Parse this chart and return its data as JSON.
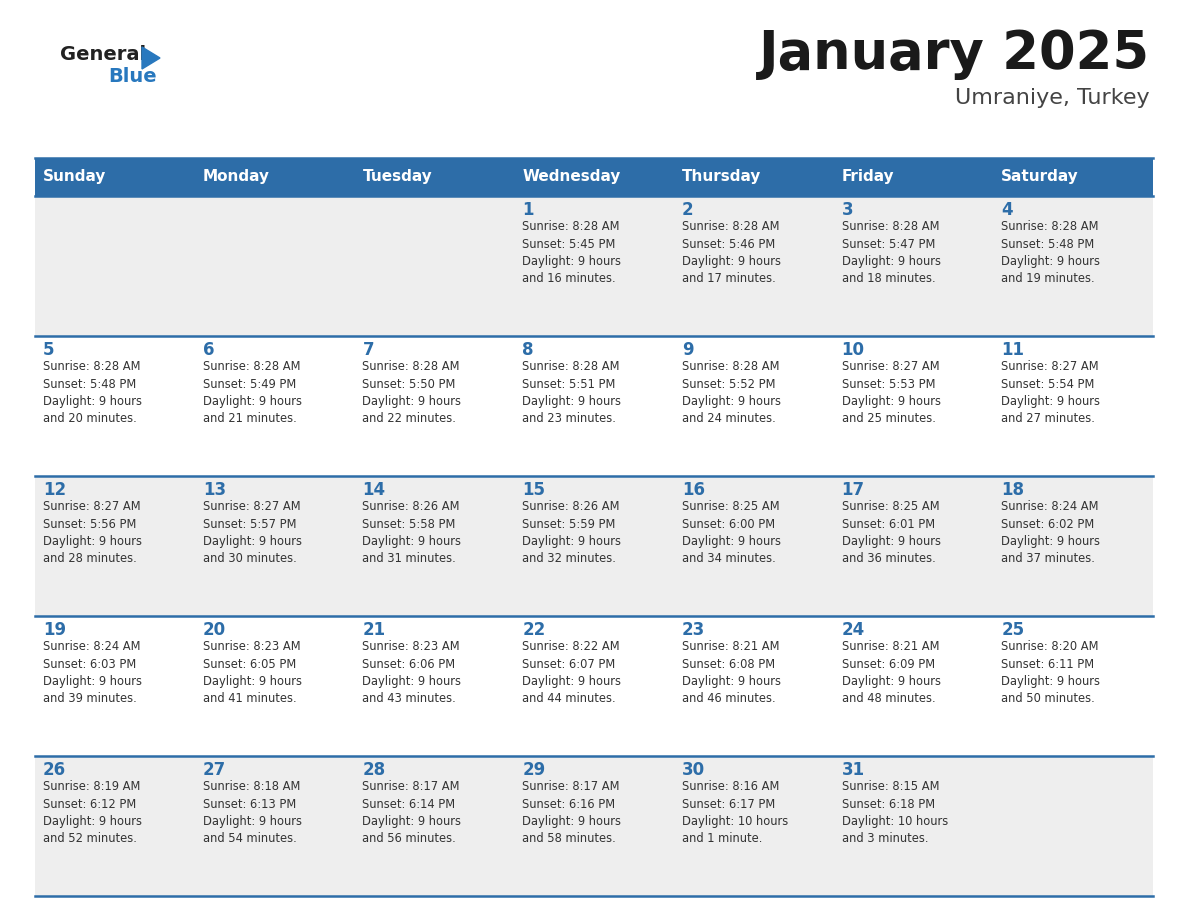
{
  "title": "January 2025",
  "subtitle": "Umraniye, Turkey",
  "days_of_week": [
    "Sunday",
    "Monday",
    "Tuesday",
    "Wednesday",
    "Thursday",
    "Friday",
    "Saturday"
  ],
  "header_bg": "#2D6DA8",
  "header_text": "#FFFFFF",
  "day_num_color": "#2D6DA8",
  "cell_bg_odd": "#EEEEEE",
  "cell_bg_even": "#FFFFFF",
  "text_color": "#333333",
  "grid_line_color": "#2D6DA8",
  "logo_general_color": "#222222",
  "logo_blue_color": "#2878BE",
  "logo_tri_color": "#2878BE",
  "weeks": [
    [
      {
        "day": null,
        "sunrise": null,
        "sunset": null,
        "daylight": null
      },
      {
        "day": null,
        "sunrise": null,
        "sunset": null,
        "daylight": null
      },
      {
        "day": null,
        "sunrise": null,
        "sunset": null,
        "daylight": null
      },
      {
        "day": 1,
        "sunrise": "8:28 AM",
        "sunset": "5:45 PM",
        "daylight": "9 hours\nand 16 minutes."
      },
      {
        "day": 2,
        "sunrise": "8:28 AM",
        "sunset": "5:46 PM",
        "daylight": "9 hours\nand 17 minutes."
      },
      {
        "day": 3,
        "sunrise": "8:28 AM",
        "sunset": "5:47 PM",
        "daylight": "9 hours\nand 18 minutes."
      },
      {
        "day": 4,
        "sunrise": "8:28 AM",
        "sunset": "5:48 PM",
        "daylight": "9 hours\nand 19 minutes."
      }
    ],
    [
      {
        "day": 5,
        "sunrise": "8:28 AM",
        "sunset": "5:48 PM",
        "daylight": "9 hours\nand 20 minutes."
      },
      {
        "day": 6,
        "sunrise": "8:28 AM",
        "sunset": "5:49 PM",
        "daylight": "9 hours\nand 21 minutes."
      },
      {
        "day": 7,
        "sunrise": "8:28 AM",
        "sunset": "5:50 PM",
        "daylight": "9 hours\nand 22 minutes."
      },
      {
        "day": 8,
        "sunrise": "8:28 AM",
        "sunset": "5:51 PM",
        "daylight": "9 hours\nand 23 minutes."
      },
      {
        "day": 9,
        "sunrise": "8:28 AM",
        "sunset": "5:52 PM",
        "daylight": "9 hours\nand 24 minutes."
      },
      {
        "day": 10,
        "sunrise": "8:27 AM",
        "sunset": "5:53 PM",
        "daylight": "9 hours\nand 25 minutes."
      },
      {
        "day": 11,
        "sunrise": "8:27 AM",
        "sunset": "5:54 PM",
        "daylight": "9 hours\nand 27 minutes."
      }
    ],
    [
      {
        "day": 12,
        "sunrise": "8:27 AM",
        "sunset": "5:56 PM",
        "daylight": "9 hours\nand 28 minutes."
      },
      {
        "day": 13,
        "sunrise": "8:27 AM",
        "sunset": "5:57 PM",
        "daylight": "9 hours\nand 30 minutes."
      },
      {
        "day": 14,
        "sunrise": "8:26 AM",
        "sunset": "5:58 PM",
        "daylight": "9 hours\nand 31 minutes."
      },
      {
        "day": 15,
        "sunrise": "8:26 AM",
        "sunset": "5:59 PM",
        "daylight": "9 hours\nand 32 minutes."
      },
      {
        "day": 16,
        "sunrise": "8:25 AM",
        "sunset": "6:00 PM",
        "daylight": "9 hours\nand 34 minutes."
      },
      {
        "day": 17,
        "sunrise": "8:25 AM",
        "sunset": "6:01 PM",
        "daylight": "9 hours\nand 36 minutes."
      },
      {
        "day": 18,
        "sunrise": "8:24 AM",
        "sunset": "6:02 PM",
        "daylight": "9 hours\nand 37 minutes."
      }
    ],
    [
      {
        "day": 19,
        "sunrise": "8:24 AM",
        "sunset": "6:03 PM",
        "daylight": "9 hours\nand 39 minutes."
      },
      {
        "day": 20,
        "sunrise": "8:23 AM",
        "sunset": "6:05 PM",
        "daylight": "9 hours\nand 41 minutes."
      },
      {
        "day": 21,
        "sunrise": "8:23 AM",
        "sunset": "6:06 PM",
        "daylight": "9 hours\nand 43 minutes."
      },
      {
        "day": 22,
        "sunrise": "8:22 AM",
        "sunset": "6:07 PM",
        "daylight": "9 hours\nand 44 minutes."
      },
      {
        "day": 23,
        "sunrise": "8:21 AM",
        "sunset": "6:08 PM",
        "daylight": "9 hours\nand 46 minutes."
      },
      {
        "day": 24,
        "sunrise": "8:21 AM",
        "sunset": "6:09 PM",
        "daylight": "9 hours\nand 48 minutes."
      },
      {
        "day": 25,
        "sunrise": "8:20 AM",
        "sunset": "6:11 PM",
        "daylight": "9 hours\nand 50 minutes."
      }
    ],
    [
      {
        "day": 26,
        "sunrise": "8:19 AM",
        "sunset": "6:12 PM",
        "daylight": "9 hours\nand 52 minutes."
      },
      {
        "day": 27,
        "sunrise": "8:18 AM",
        "sunset": "6:13 PM",
        "daylight": "9 hours\nand 54 minutes."
      },
      {
        "day": 28,
        "sunrise": "8:17 AM",
        "sunset": "6:14 PM",
        "daylight": "9 hours\nand 56 minutes."
      },
      {
        "day": 29,
        "sunrise": "8:17 AM",
        "sunset": "6:16 PM",
        "daylight": "9 hours\nand 58 minutes."
      },
      {
        "day": 30,
        "sunrise": "8:16 AM",
        "sunset": "6:17 PM",
        "daylight": "10 hours\nand 1 minute."
      },
      {
        "day": 31,
        "sunrise": "8:15 AM",
        "sunset": "6:18 PM",
        "daylight": "10 hours\nand 3 minutes."
      },
      {
        "day": null,
        "sunrise": null,
        "sunset": null,
        "daylight": null
      }
    ]
  ]
}
